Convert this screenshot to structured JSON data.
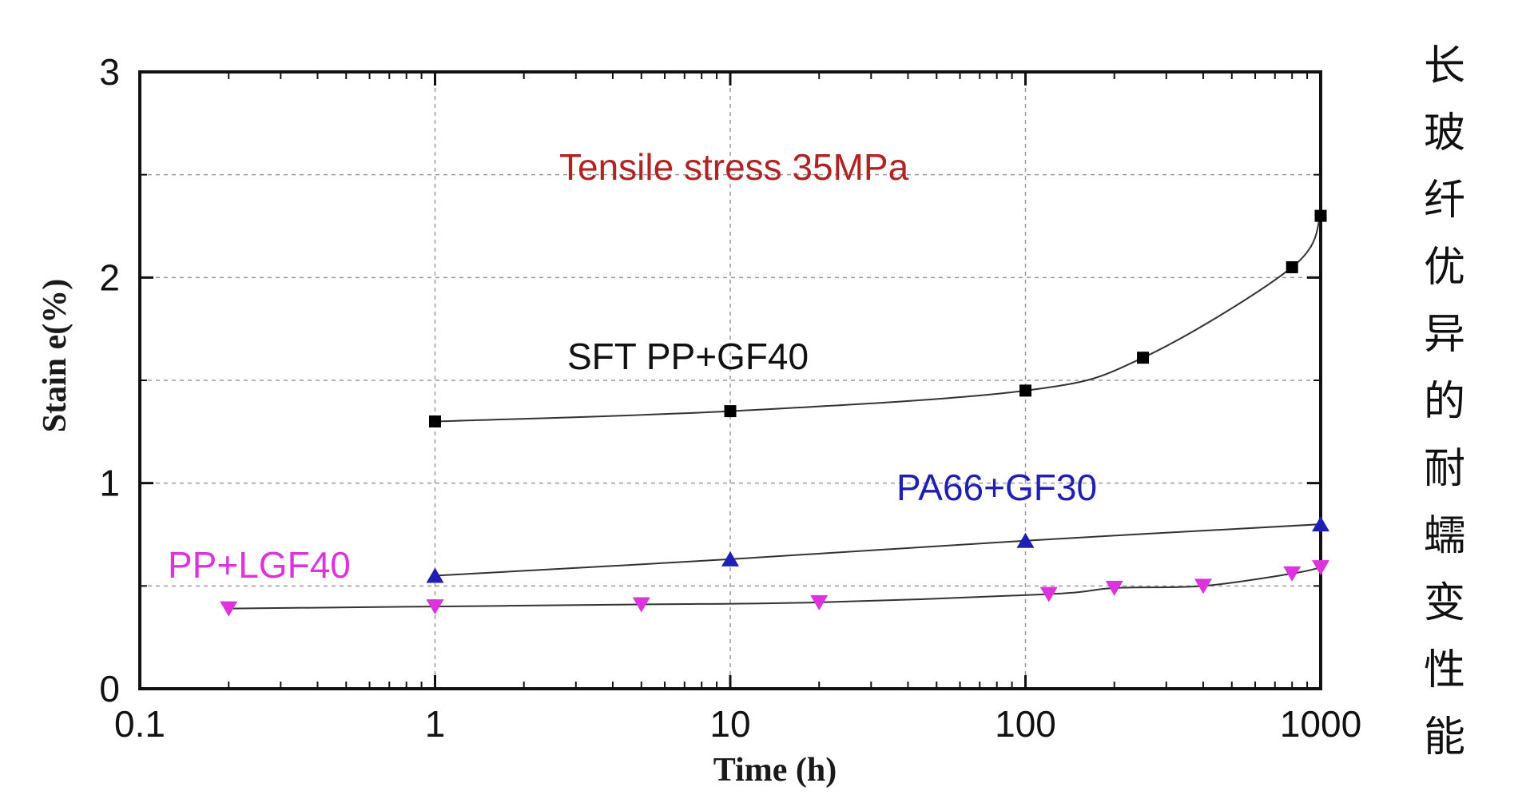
{
  "side_caption": [
    "长",
    "玻",
    "纤",
    "优",
    "异",
    "的",
    "耐",
    "蠕",
    "变",
    "性",
    "能"
  ],
  "colors": {
    "axis": "#111111",
    "grid": "#9a9a9a",
    "annotation": "#b22222",
    "series_sft": "#000000",
    "series_pa66": "#1f1fb4",
    "series_lgf": "#dd33dd",
    "line": "#333333"
  },
  "chart_data": {
    "type": "line",
    "x_scale": "log",
    "xlim": [
      0.1,
      1000
    ],
    "ylim": [
      0,
      3
    ],
    "xticks": [
      0.1,
      1,
      10,
      100,
      1000
    ],
    "xtick_labels": [
      "0.1",
      "1",
      "10",
      "100",
      "1000"
    ],
    "yticks": [
      0,
      1,
      2,
      3
    ],
    "ytick_labels": [
      "0",
      "1",
      "2",
      "3"
    ],
    "xlabel": "Time (h)",
    "ylabel": "Stain e(%)",
    "grid": true,
    "annotation": "Tensile stress  35MPa",
    "series": [
      {
        "name": "SFT PP+GF40",
        "marker": "square",
        "x": [
          1,
          10,
          100,
          250,
          800,
          1000
        ],
        "y": [
          1.3,
          1.35,
          1.45,
          1.61,
          2.05,
          2.3
        ]
      },
      {
        "name": "PA66+GF30",
        "marker": "triangle-up",
        "x": [
          1,
          10,
          100,
          1000
        ],
        "y": [
          0.55,
          0.63,
          0.72,
          0.8
        ]
      },
      {
        "name": "PP+LGF40",
        "marker": "triangle-down",
        "x": [
          0.2,
          1,
          5,
          20,
          120,
          200,
          400,
          800,
          1000
        ],
        "y": [
          0.39,
          0.4,
          0.41,
          0.42,
          0.46,
          0.49,
          0.5,
          0.56,
          0.59
        ]
      }
    ]
  }
}
